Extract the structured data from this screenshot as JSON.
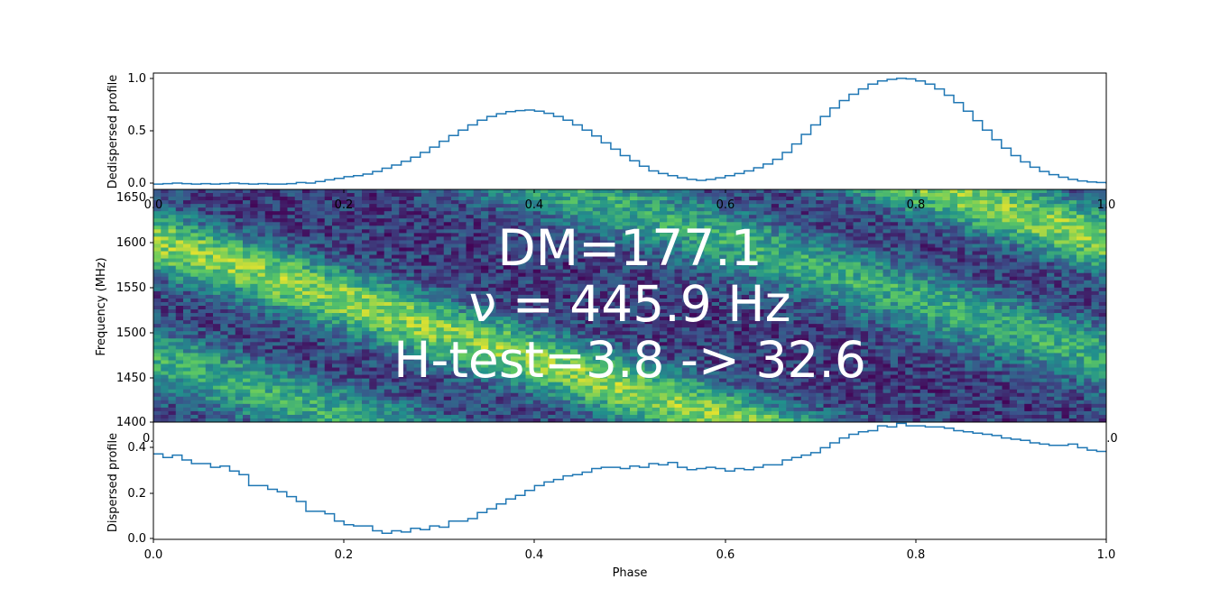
{
  "chart_data": [
    {
      "type": "line",
      "panel": "dedispersed",
      "ylabel": "Dedispersed profile",
      "xlim": [
        0.0,
        1.0
      ],
      "ylim": [
        -0.05,
        1.05
      ],
      "xticks": [
        "0.0",
        "0.2",
        "0.4",
        "0.6",
        "0.8",
        "1.0"
      ],
      "yticks": [
        {
          "value": 0.0,
          "label": "0.0"
        },
        {
          "value": 0.5,
          "label": "0.5"
        },
        {
          "value": 1.0,
          "label": "1.0"
        }
      ],
      "color": "#1f77b4",
      "phase_start": 0.0,
      "phase_step": 0.01,
      "values": [
        0.0,
        0.005,
        0.01,
        0.005,
        0.0,
        0.005,
        0.0,
        0.005,
        0.01,
        0.005,
        0.0,
        0.005,
        0.0,
        0.0,
        0.005,
        0.015,
        0.01,
        0.025,
        0.04,
        0.055,
        0.07,
        0.08,
        0.095,
        0.12,
        0.15,
        0.18,
        0.215,
        0.255,
        0.3,
        0.35,
        0.405,
        0.46,
        0.51,
        0.56,
        0.605,
        0.64,
        0.665,
        0.685,
        0.695,
        0.7,
        0.69,
        0.67,
        0.64,
        0.605,
        0.56,
        0.51,
        0.455,
        0.39,
        0.33,
        0.27,
        0.22,
        0.17,
        0.125,
        0.1,
        0.08,
        0.06,
        0.045,
        0.035,
        0.045,
        0.06,
        0.08,
        0.1,
        0.125,
        0.155,
        0.19,
        0.235,
        0.3,
        0.38,
        0.47,
        0.56,
        0.64,
        0.72,
        0.79,
        0.85,
        0.9,
        0.945,
        0.975,
        0.99,
        1.0,
        0.995,
        0.975,
        0.945,
        0.9,
        0.84,
        0.77,
        0.69,
        0.6,
        0.51,
        0.42,
        0.34,
        0.27,
        0.21,
        0.16,
        0.12,
        0.09,
        0.065,
        0.045,
        0.03,
        0.02,
        0.015,
        0.01,
        0.005,
        0.005,
        0.0,
        0.0
      ]
    },
    {
      "type": "heatmap",
      "panel": "waterfall",
      "ylabel": "Frequency (MHz)",
      "xlim": [
        0.0,
        1.0
      ],
      "ylim": [
        1400,
        1650
      ],
      "yticks": [
        1400,
        1450,
        1500,
        1550,
        1600,
        1650
      ],
      "colormap": "viridis",
      "annotations": [
        "DM=177.1",
        "ν = 445.9 Hz",
        "H-test=3.8 -> 32.6"
      ]
    },
    {
      "type": "line",
      "panel": "dispersed",
      "xlabel": "Phase",
      "ylabel": "Dispersed profile",
      "xlim": [
        0.0,
        1.0
      ],
      "ylim": [
        -0.005,
        0.475
      ],
      "xticks": [
        "0.0",
        "0.2",
        "0.4",
        "0.6",
        "0.8",
        "1.0"
      ],
      "yticks": [
        {
          "value": 0.0,
          "label": "0.0"
        },
        {
          "value": 0.2,
          "label": "0.2"
        },
        {
          "value": 0.4,
          "label": "0.4"
        }
      ],
      "color": "#1f77b4",
      "phase_start": 0.0,
      "phase_step": 0.01,
      "values": [
        0.345,
        0.33,
        0.34,
        0.32,
        0.305,
        0.305,
        0.29,
        0.295,
        0.275,
        0.26,
        0.215,
        0.215,
        0.2,
        0.19,
        0.17,
        0.15,
        0.11,
        0.11,
        0.1,
        0.07,
        0.055,
        0.05,
        0.05,
        0.03,
        0.02,
        0.03,
        0.025,
        0.04,
        0.035,
        0.05,
        0.045,
        0.07,
        0.07,
        0.08,
        0.105,
        0.12,
        0.14,
        0.16,
        0.175,
        0.195,
        0.215,
        0.23,
        0.24,
        0.255,
        0.26,
        0.27,
        0.285,
        0.29,
        0.29,
        0.285,
        0.295,
        0.29,
        0.305,
        0.3,
        0.31,
        0.29,
        0.28,
        0.285,
        0.29,
        0.285,
        0.275,
        0.285,
        0.28,
        0.29,
        0.3,
        0.3,
        0.32,
        0.33,
        0.34,
        0.35,
        0.37,
        0.39,
        0.41,
        0.425,
        0.435,
        0.44,
        0.46,
        0.455,
        0.47,
        0.46,
        0.46,
        0.455,
        0.455,
        0.45,
        0.44,
        0.435,
        0.43,
        0.425,
        0.42,
        0.41,
        0.405,
        0.4,
        0.39,
        0.385,
        0.38,
        0.38,
        0.385,
        0.37,
        0.36,
        0.355,
        0.355
      ]
    }
  ],
  "tick_labels": {
    "top_x": [
      "0.0",
      "0.2",
      "0.4",
      "0.6",
      "0.8",
      "1.0"
    ],
    "mid_x_left": "0.0",
    "mid_x_right": "1.0",
    "mid_y": [
      "1650",
      "1600",
      "1550",
      "1500",
      "1450",
      "1400"
    ],
    "top_y": [
      "1.0",
      "0.5",
      "0.0"
    ],
    "bot_y": [
      "0.4",
      "0.2",
      "0.0"
    ],
    "bot_x": [
      "0.0",
      "0.2",
      "0.4",
      "0.6",
      "0.8",
      "1.0"
    ]
  }
}
